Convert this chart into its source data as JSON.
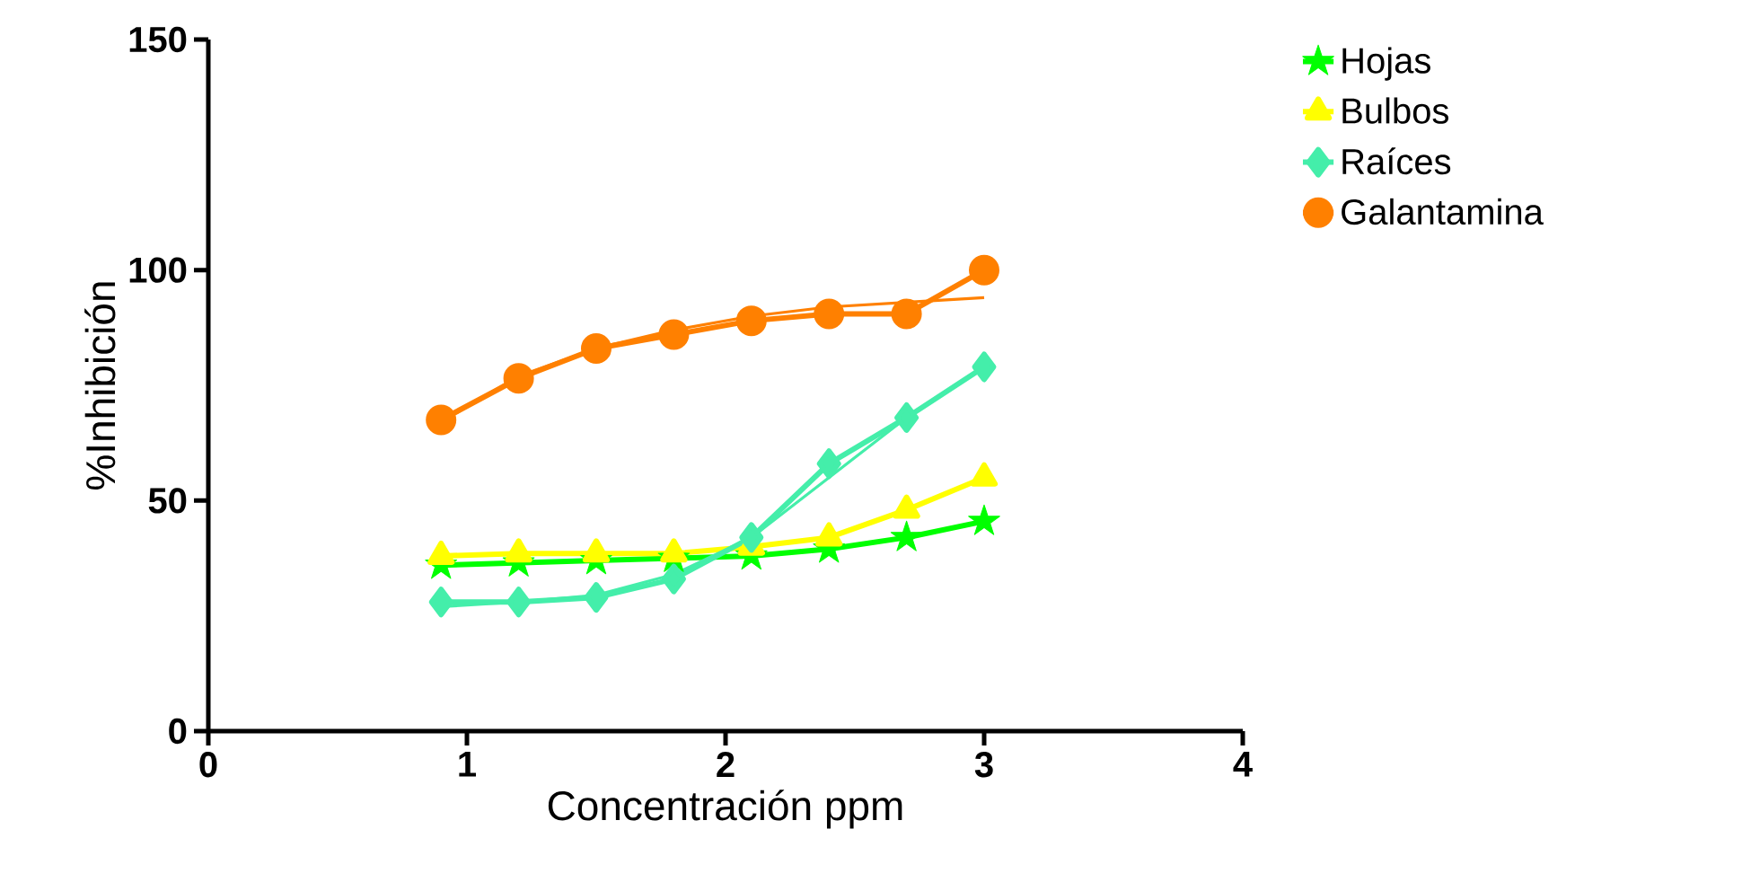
{
  "chart_data": {
    "type": "line",
    "xlabel": "Concentración ppm",
    "ylabel": "%Inhibición",
    "x": [
      0.9,
      1.2,
      1.5,
      1.8,
      2.1,
      2.4,
      2.7,
      3.0
    ],
    "series": [
      {
        "name": "Hojas",
        "color": "#00ff00",
        "marker": "star",
        "values": [
          36,
          36.5,
          37,
          37.5,
          38,
          39.5,
          42,
          45.5
        ]
      },
      {
        "name": "Bulbos",
        "color": "#ffff00",
        "marker": "triangle",
        "values": [
          38,
          38.5,
          38.5,
          38.5,
          40,
          42,
          48,
          55
        ]
      },
      {
        "name": "Raíces",
        "color": "#44eeaa",
        "marker": "diamond",
        "values": [
          28,
          28,
          29,
          33,
          42,
          58,
          68,
          79
        ]
      },
      {
        "name": "Galantamina",
        "color": "#ff8000",
        "marker": "circle",
        "values": [
          67.5,
          76.5,
          83,
          86,
          89,
          90.5,
          90.5,
          100
        ]
      },
      {
        "type": "line",
        "color": "#44eeaa",
        "marker": "none",
        "values": [
          27,
          28,
          29.5,
          34,
          42,
          55,
          68,
          79
        ]
      },
      {
        "type": "line",
        "color": "#ff8000",
        "marker": "none",
        "values": [
          67,
          77,
          83,
          87,
          90,
          92,
          93,
          94
        ]
      }
    ],
    "xlim": [
      0,
      4
    ],
    "xticks": [
      0,
      1,
      2,
      3,
      4
    ],
    "ylim": [
      0,
      150
    ],
    "yticks": [
      0,
      50,
      100,
      150
    ],
    "grid": false,
    "legend": "right"
  }
}
